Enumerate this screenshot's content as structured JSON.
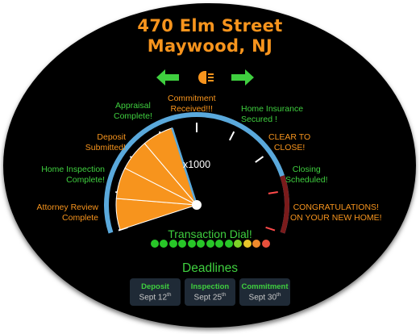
{
  "property": {
    "street": "470 Elm Street",
    "city": "Maywood, NJ"
  },
  "colors": {
    "accent": "#f7941d",
    "complete": "#3fcf3f",
    "gauge_rim": "#5aa9dc",
    "needle_fill": "#f7941d"
  },
  "icons": {
    "prev": "arrow-left-icon",
    "headlight": "headlight-icon",
    "next": "arrow-right-icon"
  },
  "milestones": {
    "attorney_review": "Attorney Review\nComplete",
    "home_inspection": "Home Inspection\nComplete!",
    "deposit": "Deposit\nSubmitted!",
    "appraisal": "Appraisal\nComplete!",
    "commitment": "Commitment\nReceived!!!",
    "insurance": "Home Insurance\nSecured !",
    "clear_to_close": "CLEAR TO\nCLOSE!",
    "closing": "Closing\nScheduled!",
    "congrats": "CONGRATULATIONS!\nON YOUR NEW HOME!"
  },
  "gauge": {
    "scale": "x1000",
    "total_steps": 9,
    "completed_steps": 4
  },
  "dial_label": "Transaction Dial!",
  "progress_dots": [
    "#28c628",
    "#28c628",
    "#28c628",
    "#28c628",
    "#28c628",
    "#28c628",
    "#28c628",
    "#28c628",
    "#28c628",
    "#7ed228",
    "#e8c62a",
    "#f08a2c",
    "#e8503c"
  ],
  "deadlines": {
    "title": "Deadlines",
    "items": [
      {
        "label": "Deposit",
        "date": "Sept 12",
        "suffix": "th"
      },
      {
        "label": "Inspection",
        "date": "Sept 25",
        "suffix": "th"
      },
      {
        "label": "Commitment",
        "date": "Sept 30",
        "suffix": "th"
      }
    ]
  }
}
